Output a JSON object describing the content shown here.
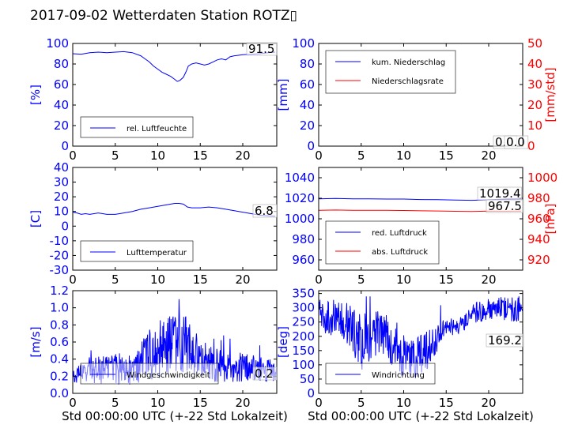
{
  "figure": {
    "title": "2017-09-02 Wetterdaten Station ROTZ▯",
    "xlabel": "Std 00:00:00 UTC (+-22 Std Lokalzeit)",
    "x_ticks": [
      0,
      5,
      10,
      15,
      20
    ],
    "colors": {
      "blue": "#0000ff",
      "red": "#ff0000",
      "black": "#000000"
    }
  },
  "chart_data": [
    {
      "id": "humidity",
      "type": "line",
      "ylabel": "[%]",
      "ylim": [
        0,
        100
      ],
      "yticks": [
        0,
        20,
        40,
        60,
        80,
        100
      ],
      "xlim": [
        0,
        24
      ],
      "annotation": "91.5",
      "legend": "rel. Luftfeuchte",
      "series": [
        {
          "name": "rel. Luftfeuchte",
          "color": "#0000ff",
          "x": [
            0,
            1,
            2,
            3,
            4,
            5,
            6,
            7,
            8,
            8.5,
            9,
            9.5,
            10,
            10.5,
            11,
            11.5,
            12,
            12.3,
            12.6,
            13,
            13.3,
            13.6,
            14,
            14.5,
            15,
            15.5,
            16,
            16.5,
            17,
            17.5,
            18,
            18.5,
            19,
            19.5,
            20,
            21,
            22,
            23,
            23.8
          ],
          "y": [
            90,
            89.5,
            91,
            91.5,
            91,
            91.5,
            92,
            91,
            88,
            85,
            82,
            78,
            75,
            72,
            70,
            68,
            65,
            63,
            64,
            67,
            72,
            78,
            80,
            81,
            80,
            79,
            80,
            82,
            84,
            85,
            84,
            87,
            88,
            88.5,
            89,
            89.5,
            90,
            91,
            91.5
          ]
        }
      ]
    },
    {
      "id": "precip",
      "type": "line",
      "ylabel": "[mm]",
      "ylim": [
        0,
        100
      ],
      "yticks": [
        0,
        20,
        40,
        60,
        80,
        100
      ],
      "ylabel_right": "[mm/std]",
      "ylim_right": [
        0,
        50
      ],
      "yticks_right": [
        0,
        10,
        20,
        30,
        40,
        50
      ],
      "xlim": [
        0,
        24
      ],
      "annotations": [
        "0.0",
        "0.0"
      ],
      "legend": [
        "kum. Niederschlag",
        "Niederschlagsrate"
      ],
      "series": [
        {
          "name": "kum. Niederschlag",
          "color": "#0000ff",
          "axis": "left",
          "x": [
            0,
            24
          ],
          "y": [
            0,
            0
          ]
        },
        {
          "name": "Niederschlagsrate",
          "color": "#ff0000",
          "axis": "right",
          "x": [
            0,
            24
          ],
          "y": [
            0,
            0
          ]
        }
      ]
    },
    {
      "id": "temperature",
      "type": "line",
      "ylabel": "[C]",
      "ylim": [
        -30,
        40
      ],
      "yticks": [
        -30,
        -20,
        -10,
        0,
        10,
        20,
        30,
        40
      ],
      "xlim": [
        0,
        24
      ],
      "annotation": "6.8",
      "legend": "Lufttemperatur",
      "series": [
        {
          "name": "Lufttemperatur",
          "color": "#0000ff",
          "x": [
            0,
            0.5,
            1,
            1.5,
            2,
            3,
            4,
            5,
            6,
            7,
            8,
            9,
            10,
            11,
            12,
            12.5,
            13,
            13.5,
            14,
            15,
            16,
            17,
            18,
            19,
            20,
            21,
            22,
            23,
            23.8
          ],
          "y": [
            9.5,
            9,
            8,
            8.5,
            8,
            9,
            8,
            8,
            9,
            10,
            11.5,
            12.5,
            13.5,
            14.5,
            15.5,
            15.5,
            15,
            13,
            12.5,
            12.5,
            13,
            12.5,
            11.5,
            10.5,
            9.5,
            8.5,
            7.5,
            7,
            6.8
          ]
        }
      ]
    },
    {
      "id": "pressure",
      "type": "line",
      "ylabel": "",
      "ylim": [
        950,
        1050
      ],
      "yticks": [
        960,
        980,
        1000,
        1020,
        1040
      ],
      "ylabel_right": "[hPa]",
      "ylim_right": [
        910,
        1010
      ],
      "yticks_right": [
        920,
        940,
        960,
        980,
        1000
      ],
      "xlim": [
        0,
        24
      ],
      "annotations": [
        "1019.4",
        "967.5"
      ],
      "legend": [
        "red. Luftdruck",
        "abs. Luftdruck"
      ],
      "series": [
        {
          "name": "red. Luftdruck",
          "color": "#0000ff",
          "axis": "left",
          "x": [
            0,
            2,
            4,
            6,
            8,
            10,
            12,
            14,
            16,
            18,
            20,
            22,
            23.8
          ],
          "y": [
            1019.5,
            1019.8,
            1019.4,
            1019.4,
            1019.2,
            1019.2,
            1018.8,
            1018.6,
            1018.2,
            1018.0,
            1018.5,
            1019.2,
            1019.4
          ]
        },
        {
          "name": "abs. Luftdruck",
          "color": "#ff0000",
          "axis": "right",
          "x": [
            0,
            2,
            4,
            6,
            8,
            10,
            12,
            14,
            16,
            18,
            20,
            22,
            23.8
          ],
          "y": [
            968.3,
            968.5,
            968.2,
            968.3,
            968.2,
            968.1,
            967.8,
            967.6,
            967.3,
            967.1,
            967.5,
            967.4,
            967.5
          ]
        }
      ]
    },
    {
      "id": "windspeed",
      "type": "line",
      "ylabel": "[m/s]",
      "ylim": [
        0,
        1.2
      ],
      "yticks": [
        0.0,
        0.2,
        0.4,
        0.6,
        0.8,
        1.0,
        1.2
      ],
      "xlim": [
        0,
        24
      ],
      "annotation": "0.2",
      "legend": "Windgeschwindigkeit",
      "noise": {
        "seed": 7,
        "base": [
          [
            0,
            0.25
          ],
          [
            7,
            0.3
          ],
          [
            9,
            0.45
          ],
          [
            11,
            0.55
          ],
          [
            13,
            0.6
          ],
          [
            15,
            0.4
          ],
          [
            18,
            0.3
          ],
          [
            21,
            0.3
          ],
          [
            24,
            0.25
          ]
        ],
        "amp": [
          [
            0,
            0.25
          ],
          [
            7,
            0.4
          ],
          [
            9,
            0.6
          ],
          [
            11,
            0.75
          ],
          [
            13,
            0.8
          ],
          [
            15,
            0.5
          ],
          [
            18,
            0.35
          ],
          [
            21,
            0.35
          ],
          [
            24,
            0.3
          ]
        ],
        "min": 0.05,
        "max": 1.1
      },
      "series": [
        {
          "name": "Windgeschwindigkeit",
          "color": "#0000ff",
          "x": [],
          "y": []
        }
      ]
    },
    {
      "id": "winddir",
      "type": "line",
      "ylabel": "[deg]",
      "ylim": [
        0,
        360
      ],
      "yticks": [
        0,
        50,
        100,
        150,
        200,
        250,
        300,
        350
      ],
      "xlim": [
        0,
        24
      ],
      "annotation": "169.2",
      "legend": "Windrichtung",
      "noise": {
        "seed": 11,
        "base": [
          [
            0,
            270
          ],
          [
            3,
            260
          ],
          [
            5,
            180
          ],
          [
            7,
            230
          ],
          [
            9,
            150
          ],
          [
            11,
            120
          ],
          [
            13,
            160
          ],
          [
            14,
            200
          ],
          [
            15,
            230
          ],
          [
            17,
            240
          ],
          [
            18,
            280
          ],
          [
            20,
            300
          ],
          [
            24,
            290
          ]
        ],
        "amp": [
          [
            0,
            120
          ],
          [
            3,
            140
          ],
          [
            5,
            200
          ],
          [
            7,
            180
          ],
          [
            9,
            160
          ],
          [
            11,
            160
          ],
          [
            13,
            150
          ],
          [
            14,
            100
          ],
          [
            15,
            60
          ],
          [
            17,
            60
          ],
          [
            18,
            90
          ],
          [
            20,
            80
          ],
          [
            24,
            90
          ]
        ],
        "min": 5,
        "max": 340
      },
      "series": [
        {
          "name": "Windrichtung",
          "color": "#0000ff",
          "x": [],
          "y": []
        }
      ]
    }
  ]
}
